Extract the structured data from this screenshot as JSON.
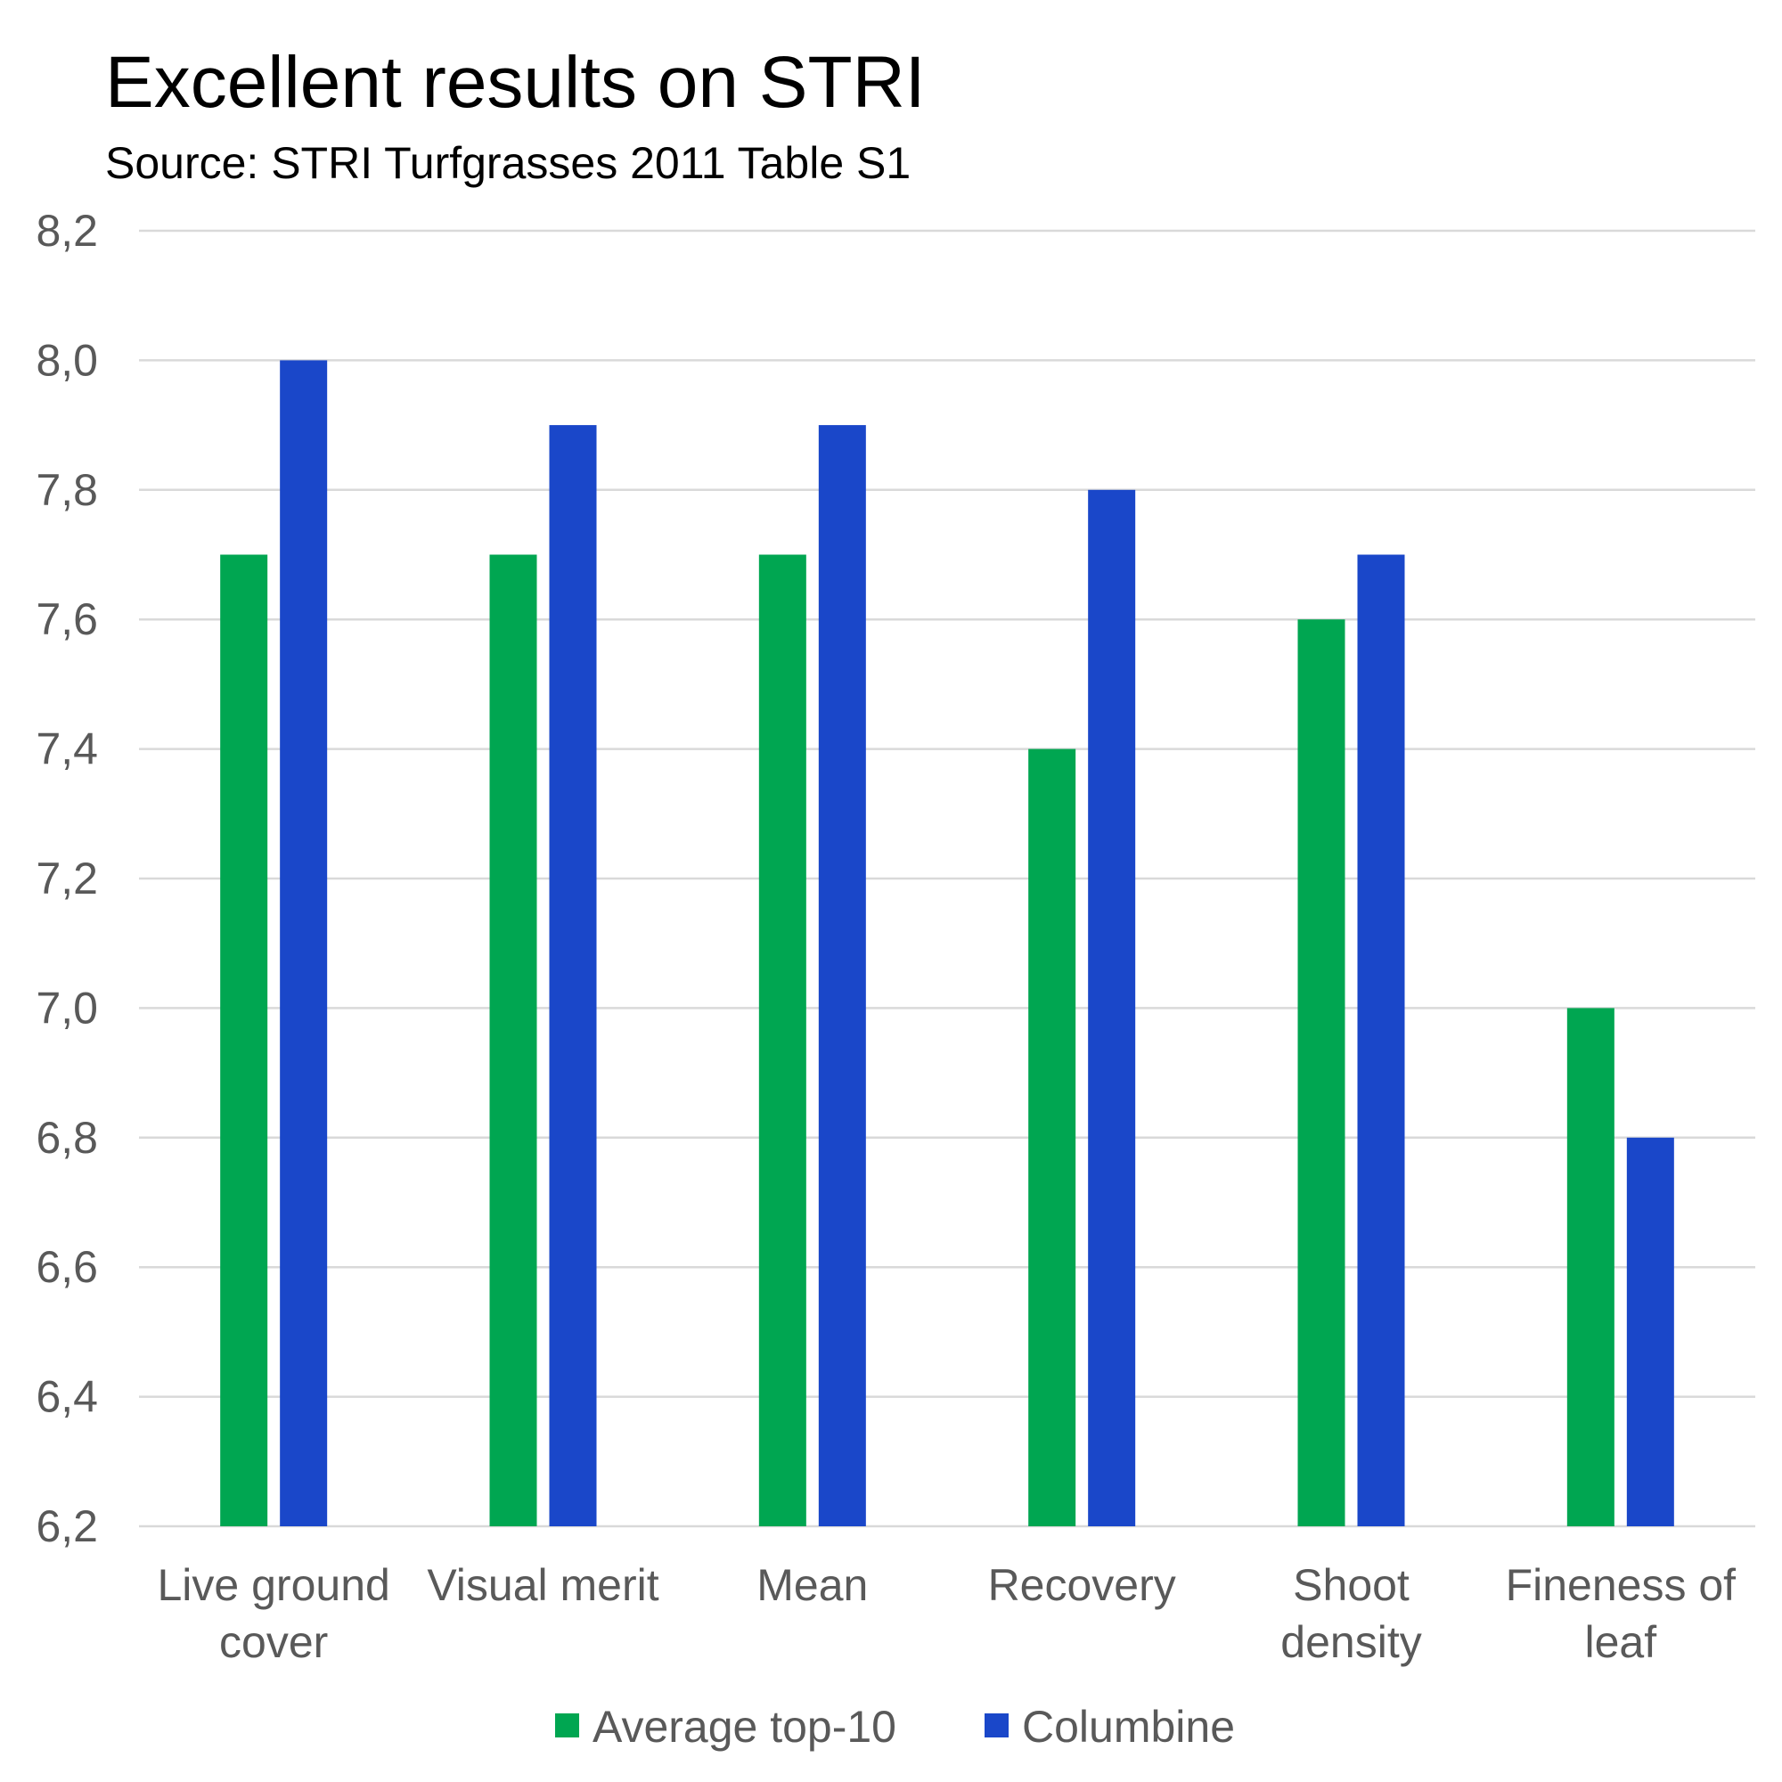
{
  "chart_data": {
    "type": "bar",
    "title": "Excellent results on STRI",
    "subtitle": "Source: STRI Turfgrasses 2011 Table S1",
    "categories": [
      [
        "Live ground",
        "cover"
      ],
      [
        "Visual merit"
      ],
      [
        "Mean"
      ],
      [
        "Recovery"
      ],
      [
        "Shoot",
        "density"
      ],
      [
        "Fineness of",
        "leaf"
      ]
    ],
    "series": [
      {
        "name": "Average top-10",
        "color": "#00A651",
        "values": [
          7.7,
          7.7,
          7.7,
          7.4,
          7.6,
          7.0
        ]
      },
      {
        "name": "Columbine",
        "color": "#1A47C9",
        "values": [
          8.0,
          7.9,
          7.9,
          7.8,
          7.7,
          6.8
        ]
      }
    ],
    "ylim": [
      6.2,
      8.2
    ],
    "yticks": [
      "6,2",
      "6,4",
      "6,6",
      "6,8",
      "7,0",
      "7,2",
      "7,4",
      "7,6",
      "7,8",
      "8,0",
      "8,2"
    ],
    "ytick_values": [
      6.2,
      6.4,
      6.6,
      6.8,
      7.0,
      7.2,
      7.4,
      7.6,
      7.8,
      8.0,
      8.2
    ],
    "grid": true,
    "legend_position": "bottom",
    "colors": {
      "grid": "#D9D9D9",
      "tick_text": "#595959"
    }
  }
}
